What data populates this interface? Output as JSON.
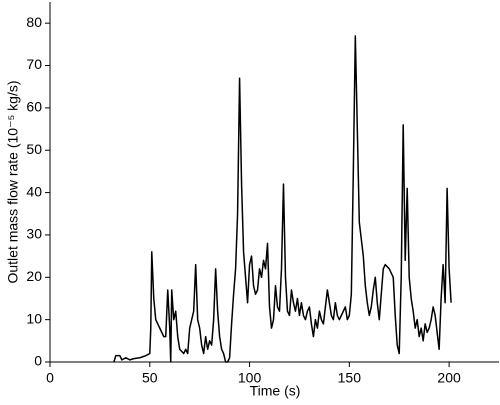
{
  "chart_data": {
    "type": "line",
    "xlabel": "Time (s)",
    "ylabel": "Outlet mass flow rate (10⁻⁵ kg/s)",
    "xlim": [
      0,
      225
    ],
    "ylim": [
      0,
      85
    ],
    "xticks": [
      0,
      50,
      100,
      150,
      200
    ],
    "yticks": [
      0,
      10,
      20,
      30,
      40,
      50,
      60,
      70,
      80
    ],
    "grid": false,
    "x": [
      32,
      33,
      35,
      36,
      38,
      40,
      42,
      45,
      48,
      50,
      50.5,
      51,
      52,
      53,
      55,
      57,
      58,
      59,
      60,
      60.5,
      61,
      62,
      63,
      64,
      65,
      67,
      68,
      69,
      70,
      72,
      73,
      74,
      75,
      76,
      77,
      78,
      79,
      80,
      81,
      82,
      83,
      84,
      85,
      86,
      87,
      88,
      89,
      90,
      91,
      92,
      93,
      94,
      95,
      96,
      97,
      98,
      99,
      100,
      101,
      102,
      103,
      104,
      105,
      106,
      107,
      108,
      109,
      110,
      111,
      112,
      113,
      114,
      115,
      116,
      117,
      118,
      119,
      120,
      121,
      122,
      123,
      124,
      125,
      126,
      127,
      128,
      129,
      130,
      131,
      132,
      133,
      134,
      135,
      136,
      137,
      138,
      139,
      140,
      141,
      142,
      143,
      144,
      145,
      146,
      147,
      148,
      149,
      150,
      151,
      152,
      153,
      154,
      155,
      156,
      157,
      158,
      159,
      160,
      161,
      162,
      163,
      164,
      165,
      166,
      167,
      168,
      170,
      172,
      173,
      174,
      175,
      176,
      177,
      178,
      179,
      180,
      181,
      182,
      183,
      184,
      185,
      186,
      187,
      188,
      189,
      190,
      191,
      192,
      193,
      194,
      195,
      196,
      197,
      198,
      199,
      200,
      201
    ],
    "series": [
      {
        "color": "#000000",
        "values": [
          0,
          1.5,
          1.5,
          0.5,
          1,
          0.5,
          0.8,
          1,
          1.5,
          2,
          8,
          26,
          15,
          10,
          8,
          6,
          6,
          17,
          8,
          0,
          17,
          10,
          12,
          6,
          3,
          2,
          3,
          2,
          8,
          12,
          23,
          10,
          8,
          4,
          2,
          6,
          3,
          5,
          4,
          10,
          22,
          12,
          6,
          3,
          2,
          0,
          0,
          1,
          9,
          16,
          22,
          35,
          67,
          42,
          26,
          20,
          14,
          23,
          25,
          18,
          16,
          17,
          22,
          20,
          24,
          22,
          28,
          13,
          8,
          10,
          18,
          13,
          12,
          22,
          42,
          20,
          12,
          11,
          17,
          14,
          12,
          15,
          11,
          14,
          11,
          10,
          12,
          13,
          9,
          6,
          10,
          8,
          12,
          10,
          9,
          13,
          17,
          14,
          11,
          10,
          14,
          11,
          10,
          11,
          12,
          13,
          10,
          11,
          16,
          45,
          77,
          55,
          33,
          29,
          25,
          18,
          14,
          11,
          13,
          17,
          20,
          14,
          10,
          16,
          22,
          23,
          22,
          20,
          11,
          4,
          2,
          20,
          56,
          24,
          41,
          20,
          15,
          12,
          8,
          10,
          6,
          8,
          5,
          9,
          7,
          8,
          10,
          13,
          11,
          7,
          3,
          15,
          23,
          14,
          41,
          22,
          14
        ]
      }
    ]
  }
}
